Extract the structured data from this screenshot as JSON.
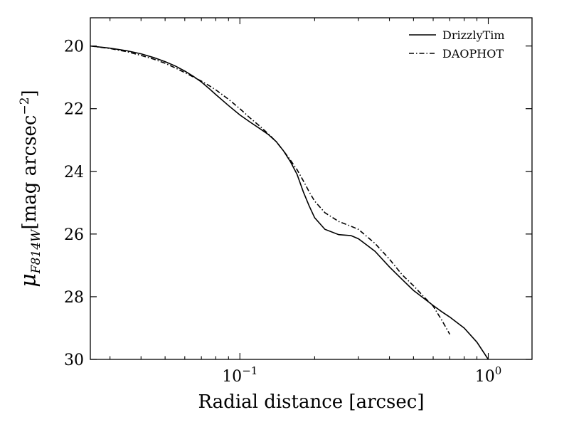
{
  "chart_data": {
    "type": "line",
    "xlabel": "Radial distance [arcsec]",
    "ylabel": {
      "mu": "μ",
      "sub": "F814W",
      "unit_main": "[mag arcsec",
      "unit_exp": "−2",
      "unit_close": "]"
    },
    "xscale": "log",
    "xlim": [
      0.025,
      1.5
    ],
    "ylim": [
      30,
      19.1
    ],
    "y_inverted": true,
    "grid": false,
    "legend_position": "top-right",
    "x_ticks": [
      {
        "value": 0.1,
        "base": "10",
        "exp": "−1"
      },
      {
        "value": 1.0,
        "base": "10",
        "exp": "0"
      }
    ],
    "y_ticks": [
      {
        "value": 20,
        "label": "20"
      },
      {
        "value": 22,
        "label": "22"
      },
      {
        "value": 24,
        "label": "24"
      },
      {
        "value": 26,
        "label": "26"
      },
      {
        "value": 28,
        "label": "28"
      },
      {
        "value": 30,
        "label": "30"
      }
    ],
    "series": [
      {
        "name": "DrizzlyTim",
        "style": "solid",
        "color": "#000000",
        "points": [
          [
            0.025,
            20.0
          ],
          [
            0.03,
            20.07
          ],
          [
            0.035,
            20.15
          ],
          [
            0.04,
            20.25
          ],
          [
            0.045,
            20.37
          ],
          [
            0.05,
            20.5
          ],
          [
            0.055,
            20.64
          ],
          [
            0.06,
            20.8
          ],
          [
            0.065,
            20.97
          ],
          [
            0.07,
            21.15
          ],
          [
            0.075,
            21.35
          ],
          [
            0.08,
            21.55
          ],
          [
            0.09,
            21.9
          ],
          [
            0.1,
            22.2
          ],
          [
            0.11,
            22.43
          ],
          [
            0.12,
            22.63
          ],
          [
            0.13,
            22.82
          ],
          [
            0.14,
            23.05
          ],
          [
            0.15,
            23.35
          ],
          [
            0.16,
            23.7
          ],
          [
            0.17,
            24.1
          ],
          [
            0.18,
            24.65
          ],
          [
            0.19,
            25.1
          ],
          [
            0.2,
            25.48
          ],
          [
            0.22,
            25.85
          ],
          [
            0.25,
            26.02
          ],
          [
            0.28,
            26.05
          ],
          [
            0.3,
            26.15
          ],
          [
            0.35,
            26.55
          ],
          [
            0.4,
            27.05
          ],
          [
            0.45,
            27.45
          ],
          [
            0.5,
            27.8
          ],
          [
            0.55,
            28.05
          ],
          [
            0.6,
            28.28
          ],
          [
            0.65,
            28.48
          ],
          [
            0.7,
            28.65
          ],
          [
            0.8,
            29.0
          ],
          [
            0.9,
            29.45
          ],
          [
            1.0,
            30.0
          ]
        ]
      },
      {
        "name": "DAOPHOT",
        "style": "dashdot",
        "color": "#000000",
        "points": [
          [
            0.025,
            20.0
          ],
          [
            0.03,
            20.08
          ],
          [
            0.035,
            20.18
          ],
          [
            0.04,
            20.3
          ],
          [
            0.045,
            20.42
          ],
          [
            0.05,
            20.55
          ],
          [
            0.055,
            20.7
          ],
          [
            0.06,
            20.85
          ],
          [
            0.065,
            20.99
          ],
          [
            0.07,
            21.12
          ],
          [
            0.075,
            21.26
          ],
          [
            0.08,
            21.4
          ],
          [
            0.09,
            21.7
          ],
          [
            0.1,
            22.0
          ],
          [
            0.11,
            22.3
          ],
          [
            0.12,
            22.55
          ],
          [
            0.13,
            22.8
          ],
          [
            0.14,
            23.05
          ],
          [
            0.15,
            23.35
          ],
          [
            0.16,
            23.65
          ],
          [
            0.17,
            23.95
          ],
          [
            0.18,
            24.3
          ],
          [
            0.19,
            24.65
          ],
          [
            0.2,
            24.95
          ],
          [
            0.22,
            25.32
          ],
          [
            0.25,
            25.6
          ],
          [
            0.28,
            25.75
          ],
          [
            0.3,
            25.85
          ],
          [
            0.35,
            26.3
          ],
          [
            0.4,
            26.8
          ],
          [
            0.45,
            27.3
          ],
          [
            0.5,
            27.65
          ],
          [
            0.55,
            28.0
          ],
          [
            0.6,
            28.3
          ],
          [
            0.65,
            28.75
          ],
          [
            0.7,
            29.2
          ]
        ]
      }
    ]
  }
}
